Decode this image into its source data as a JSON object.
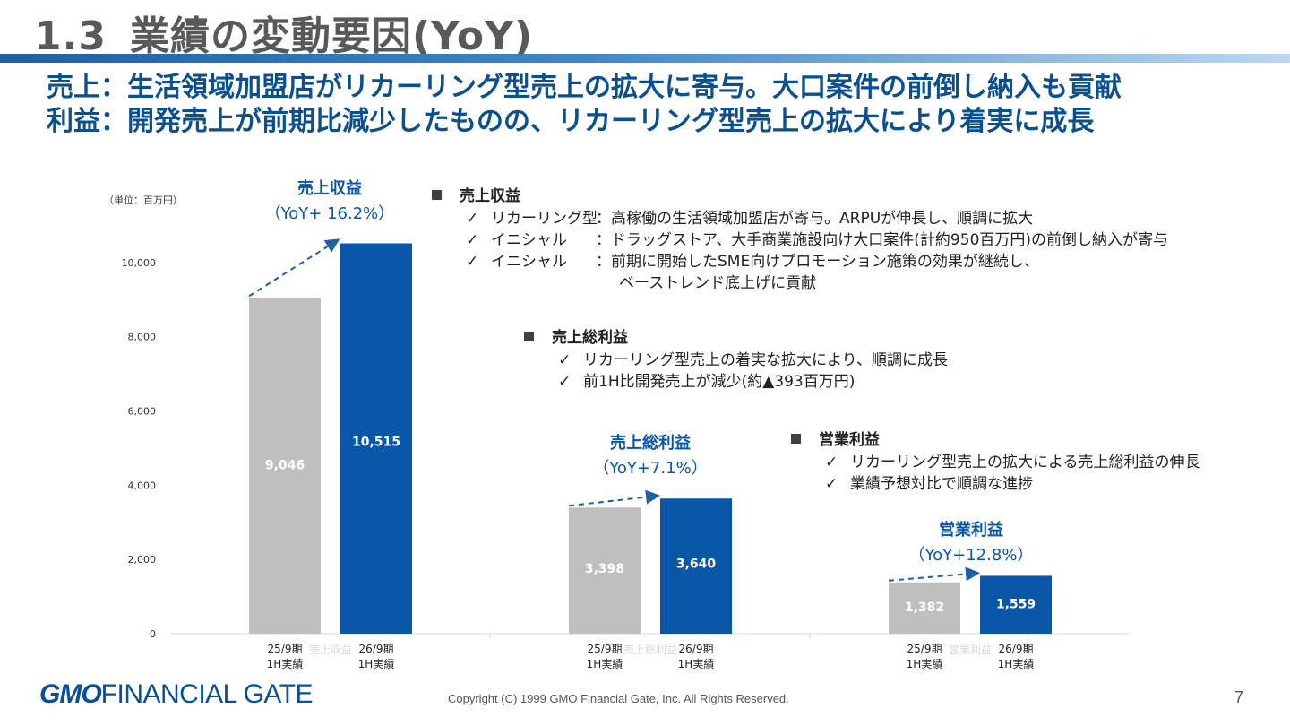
{
  "header": {
    "section_number": "1.3",
    "title": "業績の変動要因(YoY)",
    "subline1": "売上：生活領域加盟店がリカーリング型売上の拡大に寄与。大口案件の前倒し納入も貢献",
    "subline2": "利益：開発売上が前期比減少したものの、リカーリング型売上の拡大により着実に成長"
  },
  "chart_data": {
    "type": "bar",
    "unit_label": "（単位：百万円）",
    "ylim": [
      0,
      12000
    ],
    "yticks": [
      0,
      2000,
      4000,
      6000,
      8000,
      10000
    ],
    "ytick_labels": [
      "0",
      "2,000",
      "4,000",
      "6,000",
      "8,000",
      "10,000"
    ],
    "groups": [
      {
        "name": "売上収益",
        "yoy": "（YoY+ 16.2%）",
        "bars": [
          {
            "category": "25/9期\n1H実績",
            "label1": "25/9期",
            "label2": "1H実績",
            "value": 9046,
            "value_label": "9,046",
            "color": "#bfbfbf"
          },
          {
            "category": "26/9期\n1H実績",
            "label1": "26/9期",
            "label2": "1H実績",
            "value": 10515,
            "value_label": "10,515",
            "color": "#0a56a8"
          }
        ]
      },
      {
        "name": "売上総利益",
        "yoy": "（YoY+7.1%）",
        "bars": [
          {
            "category": "25/9期\n1H実績",
            "label1": "25/9期",
            "label2": "1H実績",
            "value": 3398,
            "value_label": "3,398",
            "color": "#bfbfbf"
          },
          {
            "category": "26/9期\n1H実績",
            "label1": "26/9期",
            "label2": "1H実績",
            "value": 3640,
            "value_label": "3,640",
            "color": "#0a56a8"
          }
        ]
      },
      {
        "name": "営業利益",
        "yoy": "（YoY+12.8%）",
        "bars": [
          {
            "category": "25/9期\n1H実績",
            "label1": "25/9期",
            "label2": "1H実績",
            "value": 1382,
            "value_label": "1,382",
            "color": "#bfbfbf"
          },
          {
            "category": "26/9期\n1H実績",
            "label1": "26/9期",
            "label2": "1H実績",
            "value": 1559,
            "value_label": "1,559",
            "color": "#0a56a8"
          }
        ]
      }
    ],
    "grid": false,
    "legend": "none"
  },
  "notes": {
    "revenue": {
      "heading": "売上収益",
      "items": [
        {
          "label": "リカーリング型",
          "text": "：高稼働の生活領域加盟店が寄与。ARPUが伸長し、順調に拡大"
        },
        {
          "label": "イニシャル",
          "text": "：ドラッグストア、大手商業施設向け大口案件(計約950百万円)の前倒し納入が寄与"
        },
        {
          "label": "イニシャル",
          "text": "：前期に開始したSME向けプロモーション施策の効果が継続し、"
        }
      ],
      "continuation": "ベーストレンド底上げに貢献"
    },
    "gross_profit": {
      "heading": "売上総利益",
      "items": [
        {
          "text": "リカーリング型売上の着実な拡大により、順調に成長"
        },
        {
          "text": "前1H比開発売上が減少(約▲393百万円)"
        }
      ]
    },
    "operating_profit": {
      "heading": "営業利益",
      "items": [
        {
          "text": "リカーリング型売上の拡大による売上総利益の伸長"
        },
        {
          "text": "業績予想対比で順調な進捗"
        }
      ]
    },
    "check_glyph": "✓"
  },
  "footer": {
    "logo_gmo": "GMO",
    "logo_rest": "FINANCIAL GATE",
    "copyright": "Copyright (C) 1999 GMO Financial Gate, Inc. All Rights Reserved.",
    "page_number": "7"
  },
  "colors": {
    "accent_blue": "#0a56a8",
    "prior_gray": "#bfbfbf",
    "heading_navy": "#0a4f8f"
  }
}
